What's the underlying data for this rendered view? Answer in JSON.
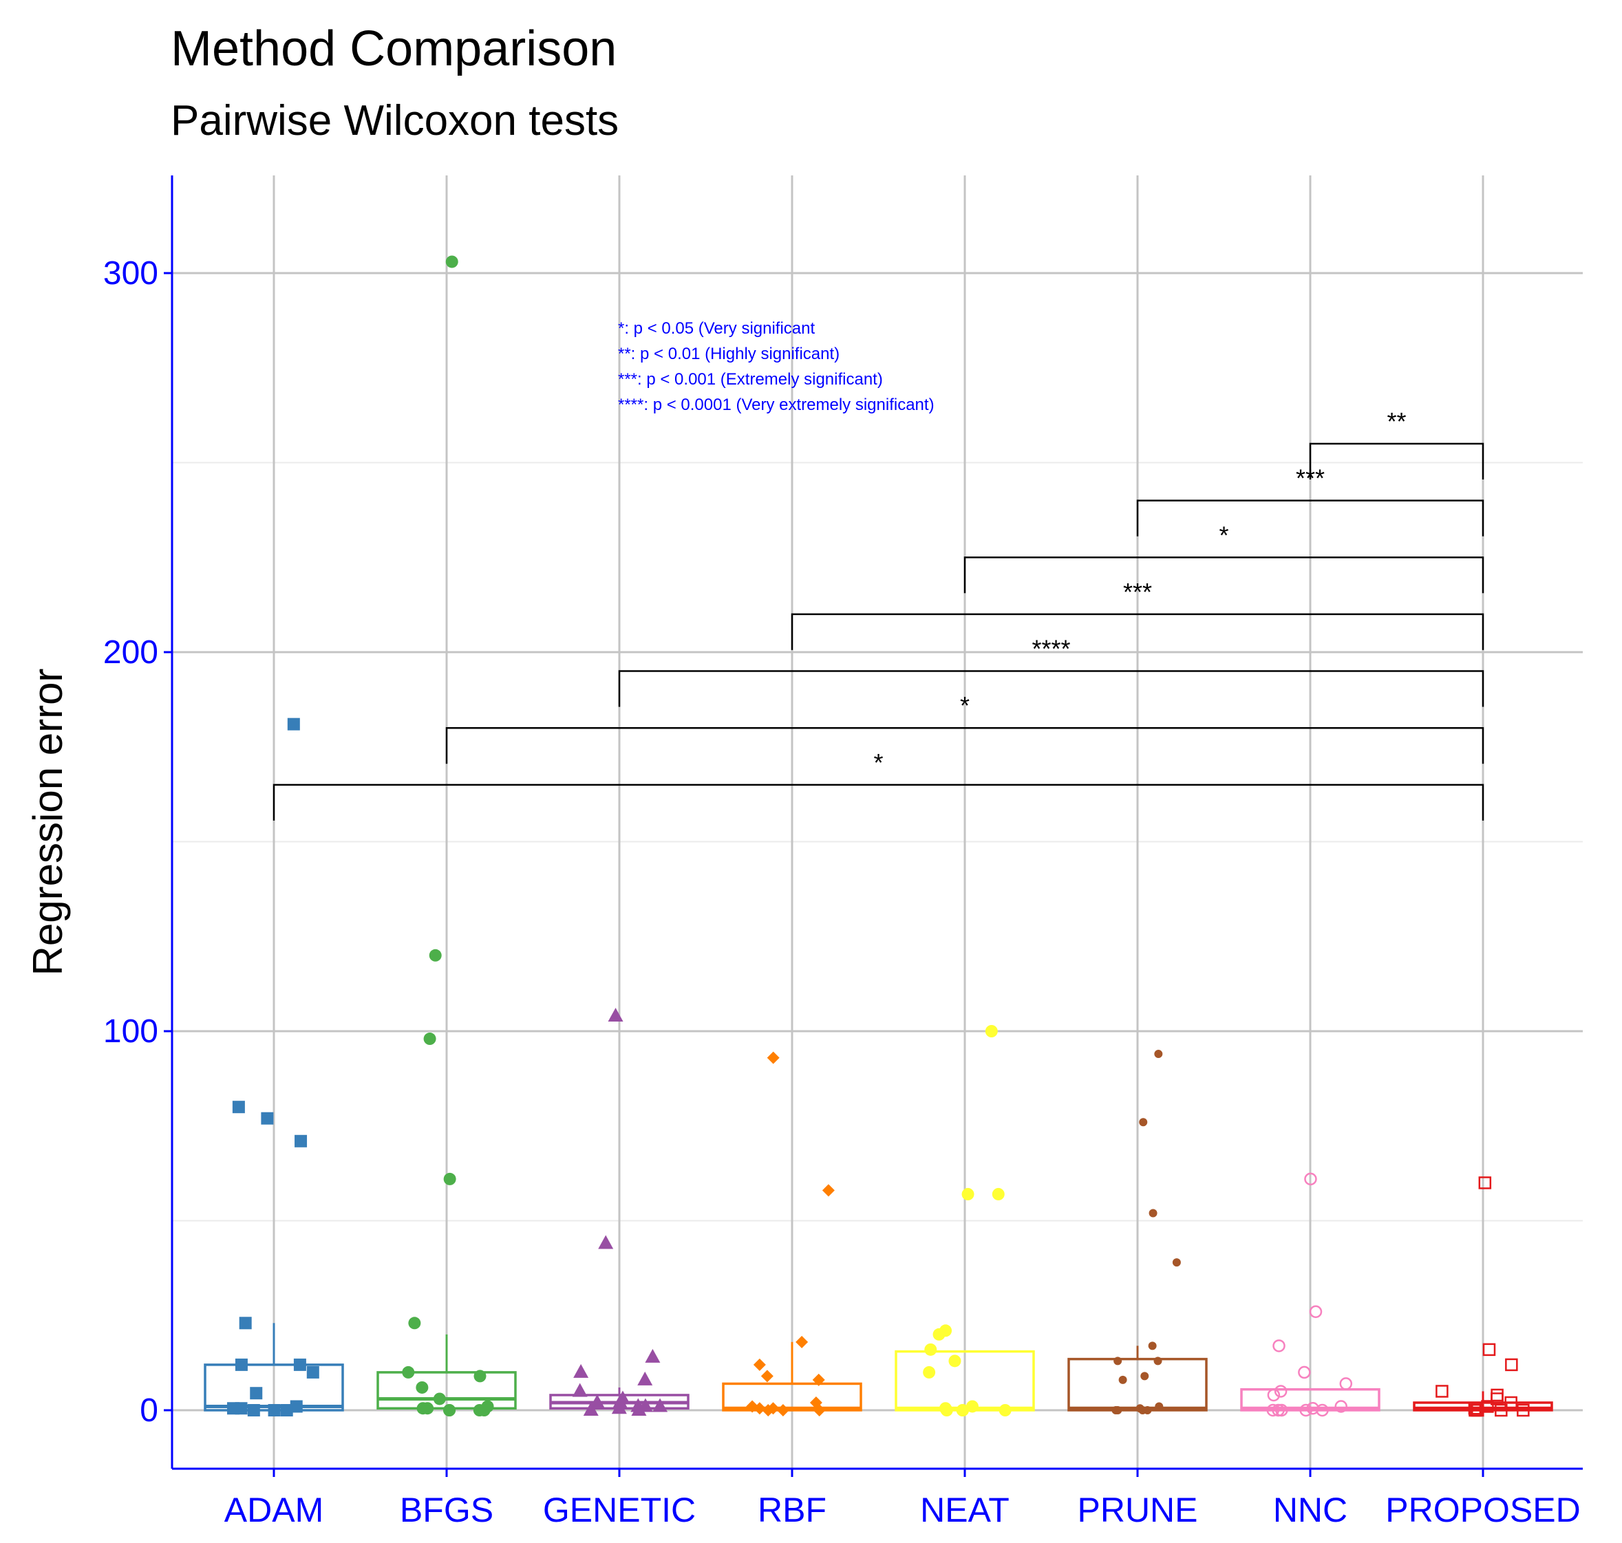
{
  "title": "Method Comparison",
  "subtitle": "Pairwise Wilcoxon tests",
  "chart_data": {
    "type": "box",
    "title": "Method Comparison",
    "subtitle": "Pairwise Wilcoxon tests",
    "xlabel": "",
    "ylabel": "Regression error",
    "ylim": [
      -15,
      325
    ],
    "yticks": [
      0,
      100,
      200,
      300
    ],
    "ytick_labels": [
      "0",
      "100",
      "200",
      "300"
    ],
    "grid": true,
    "categories": [
      "ADAM",
      "BFGS",
      "GENETIC",
      "RBF",
      "NEAT",
      "PRUNE",
      "NNC",
      "PROPOSED"
    ],
    "colors": [
      "#377eb8",
      "#4daf4a",
      "#984ea3",
      "#ff7f00",
      "#ffff33",
      "#a65628",
      "#f781bf",
      "#e41a1c"
    ],
    "axis_color": "#0000ff",
    "boxes": [
      {
        "method": "ADAM",
        "q1": 0,
        "median": 1,
        "q3": 12,
        "whisker_high": 23
      },
      {
        "method": "BFGS",
        "q1": 0.5,
        "median": 3,
        "q3": 10,
        "whisker_high": 20
      },
      {
        "method": "GENETIC",
        "q1": 0.5,
        "median": 2,
        "q3": 4,
        "whisker_high": 6
      },
      {
        "method": "RBF",
        "q1": 0,
        "median": 0.5,
        "q3": 7,
        "whisker_high": 18
      },
      {
        "method": "NEAT",
        "q1": 0,
        "median": 0.5,
        "q3": 15.5,
        "whisker_high": 15.5
      },
      {
        "method": "PRUNE",
        "q1": 0,
        "median": 0.5,
        "q3": 13.5,
        "whisker_high": 17
      },
      {
        "method": "NNC",
        "q1": 0,
        "median": 0.5,
        "q3": 5.5,
        "whisker_high": 5.5
      },
      {
        "method": "PROPOSED",
        "q1": 0,
        "median": 0.5,
        "q3": 2,
        "whisker_high": 5
      }
    ],
    "points": [
      {
        "method": "ADAM",
        "shape": "square",
        "values": [
          181,
          80,
          77,
          71,
          23,
          12,
          12,
          10,
          4.5,
          1,
          0.5,
          0,
          0,
          0,
          0.5
        ]
      },
      {
        "method": "BFGS",
        "shape": "circle",
        "values": [
          303,
          120,
          98,
          61,
          23,
          10,
          9,
          6,
          3,
          1,
          0.5,
          0,
          0,
          0,
          0.5,
          0
        ]
      },
      {
        "method": "GENETIC",
        "shape": "triangle",
        "values": [
          104,
          44,
          14,
          10,
          8,
          5,
          3,
          2,
          2,
          1,
          1,
          1,
          0.5,
          0,
          0
        ]
      },
      {
        "method": "RBF",
        "shape": "diamond",
        "values": [
          93,
          58,
          18,
          12,
          9,
          8,
          2,
          1,
          0.5,
          0.5,
          0,
          0,
          0
        ]
      },
      {
        "method": "NEAT",
        "shape": "circle",
        "values": [
          100,
          57,
          57,
          21,
          20,
          16,
          13,
          10,
          1,
          0.5,
          0,
          0,
          0,
          0
        ]
      },
      {
        "method": "PRUNE",
        "shape": "small-circle",
        "values": [
          94,
          76,
          52,
          39,
          17,
          13,
          13,
          9,
          8,
          1,
          0.5,
          0,
          0,
          0,
          0
        ]
      },
      {
        "method": "NNC",
        "shape": "open-circle",
        "values": [
          61,
          26,
          17,
          10,
          7,
          5,
          4,
          1,
          0.5,
          0,
          0,
          0,
          0,
          0
        ]
      },
      {
        "method": "PROPOSED",
        "shape": "open-square",
        "values": [
          60,
          16,
          12,
          5,
          4,
          3,
          2,
          1,
          0.5,
          0,
          0,
          0,
          0,
          0
        ]
      }
    ],
    "comparisons": [
      {
        "group1": "ADAM",
        "group2": "PROPOSED",
        "y": 165,
        "label": "*"
      },
      {
        "group1": "BFGS",
        "group2": "PROPOSED",
        "y": 180,
        "label": "*"
      },
      {
        "group1": "GENETIC",
        "group2": "PROPOSED",
        "y": 195,
        "label": "****"
      },
      {
        "group1": "RBF",
        "group2": "PROPOSED",
        "y": 210,
        "label": "***"
      },
      {
        "group1": "NEAT",
        "group2": "PROPOSED",
        "y": 225,
        "label": "*"
      },
      {
        "group1": "PRUNE",
        "group2": "PROPOSED",
        "y": 240,
        "label": "***"
      },
      {
        "group1": "NNC",
        "group2": "PROPOSED",
        "y": 255,
        "label": "**"
      }
    ],
    "annotations": [
      "*: p < 0.05 (Very significant",
      "**: p < 0.01 (Highly significant)",
      "***: p < 0.001  (Extremely significant)",
      "****: p < 0.0001  (Very extremely significant)"
    ]
  }
}
